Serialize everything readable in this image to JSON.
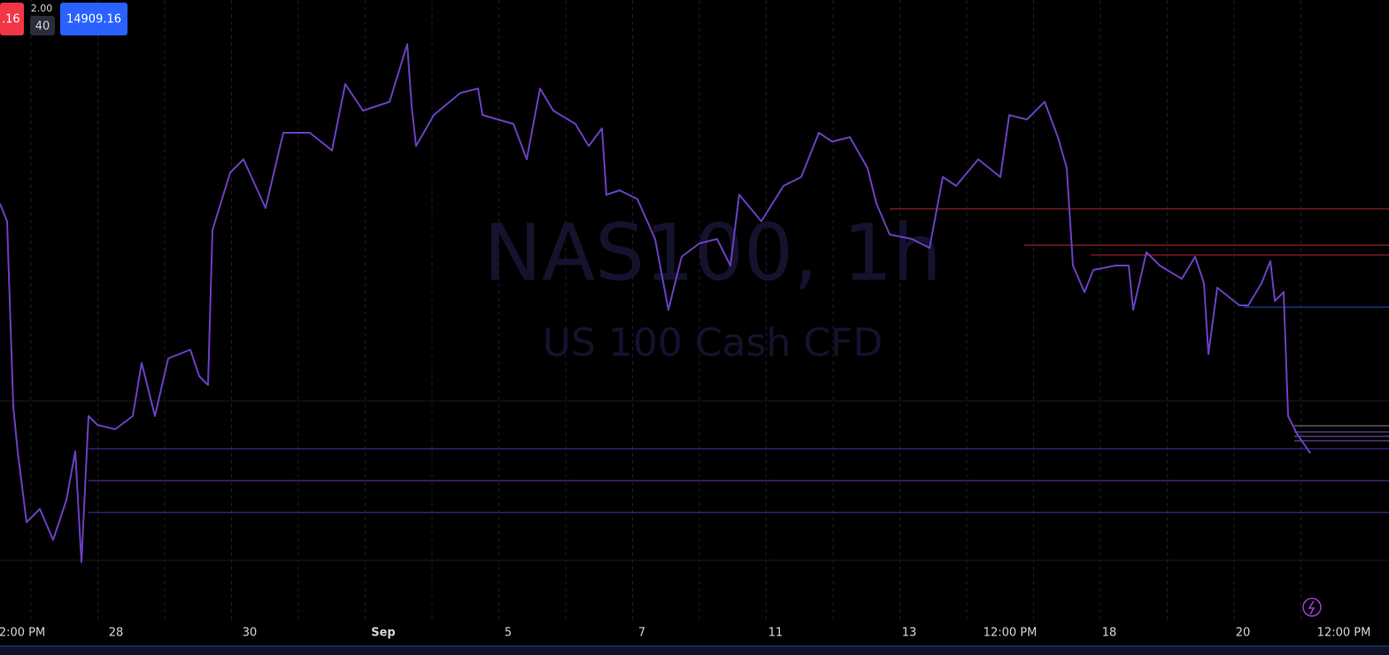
{
  "badges": {
    "sell_price": ".16",
    "spread": "2.00",
    "quantity": "40",
    "buy_price": "14909.16"
  },
  "watermark": {
    "symbol": "NAS100, 1h",
    "description": "US 100 Cash CFD"
  },
  "time_axis": {
    "labels": [
      "2:00 PM",
      "28",
      "30",
      "Sep",
      "5",
      "7",
      "11",
      "13",
      "12:00 PM",
      "18",
      "20",
      "12:00 PM"
    ]
  }
}
